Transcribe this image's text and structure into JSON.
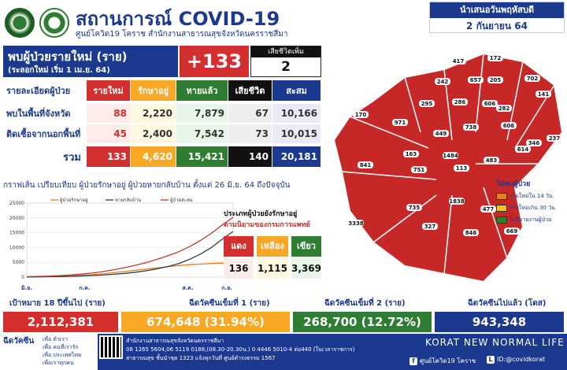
{
  "header": {
    "title": "สถานการณ์ COVID-19",
    "subtitle": "ศูนย์โควิด19 โคราช สำนักงานสาธารณสุขจังหวัดนครราชสีมา",
    "date_label": "นำเสนอวันพฤหัสบดี",
    "date_value": "2 กันยายน 64"
  },
  "summary": {
    "new_title": "พบผู้ป่วยรายใหม่ (ราย)",
    "new_subtitle": "(ระลอกใหม่ เริ่ม 1 เม.ย. 64)",
    "new_count": "+133",
    "death_label": "เสียชีวิตเพิ่ม",
    "death_count": "2"
  },
  "table": {
    "headers": [
      "รายละเอียดผู้ป่วย",
      "รายใหม่",
      "รักษาอยู่",
      "หายแล้ว",
      "เสียชีวิต",
      "สะสม"
    ],
    "rows": [
      {
        "label": "พบในพื้นที่จังหวัด",
        "cells": [
          "88",
          "2,220",
          "7,879",
          "67",
          "10,166"
        ]
      },
      {
        "label": "ติดเชื้อจากนอกพื้นที่",
        "cells": [
          "45",
          "2,400",
          "7,542",
          "73",
          "10,015"
        ]
      }
    ],
    "total": {
      "label": "รวม",
      "cells": [
        "133",
        "4,620",
        "15,421",
        "140",
        "20,181"
      ]
    }
  },
  "chart_title": "กราฟเส้น เปรียบเทียบ ผู้ป่วยรักษาอยู่ ผู้ป่วยหายกลับบ้าน ตั้งแต่ 26 มิ.ย. 64 ถึงปัจจุบัน",
  "chart_data": {
    "type": "line",
    "series": [
      {
        "name": "ผู้ป่วยรักษาอยู่",
        "color": "#e67e22",
        "values": [
          100,
          150,
          200,
          300,
          450,
          600,
          800,
          1100,
          1500,
          1900,
          2300,
          2700,
          3100,
          3500,
          3900,
          4200,
          4400,
          4600,
          4700,
          4620
        ]
      },
      {
        "name": "หายกลับบ้าน",
        "color": "#2c3e50",
        "values": [
          50,
          80,
          120,
          180,
          260,
          380,
          520,
          700,
          950,
          1250,
          1650,
          2150,
          2800,
          3600,
          4600,
          6000,
          7800,
          10000,
          12800,
          15421
        ]
      },
      {
        "name": "ผู้ป่วยสะสม",
        "color": "#c0392b",
        "values": [
          150,
          230,
          330,
          500,
          730,
          1000,
          1350,
          1850,
          2500,
          3200,
          4000,
          4900,
          6000,
          7200,
          8600,
          10300,
          12400,
          14800,
          17600,
          20181
        ]
      }
    ],
    "yticks": [
      "25000",
      "20000",
      "15000",
      "10000",
      "5000",
      "0"
    ],
    "ylim": [
      0,
      25000
    ],
    "month_labels": [
      "มิ.ย.",
      "ก.ค.",
      "ส.ค.",
      "ก.ย."
    ]
  },
  "hospital": {
    "title": "ประเภทผู้ป่วยยังรักษาอยู่",
    "subtitle": "ตามนิยามของกรมการแพทย์",
    "labels": [
      "แดง",
      "เหลือง",
      "เขียว"
    ],
    "values": [
      "136",
      "1,115",
      "3,369"
    ],
    "colors": [
      "#d32f2f",
      "#f9a825",
      "#2e7d32"
    ]
  },
  "map": {
    "districts": [
      "417",
      "172",
      "242",
      "657",
      "205",
      "702",
      "141",
      "295",
      "286",
      "606",
      "282",
      "170",
      "971",
      "449",
      "738",
      "606",
      "614",
      "346",
      "237",
      "163",
      "1484",
      "483",
      "841",
      "751",
      "113",
      "735",
      "1838",
      "477",
      "3338",
      "327",
      "846",
      "669"
    ],
    "legend_title": "ไม่พบผู้ป่วย",
    "legend_items": [
      {
        "label": "รายใหม่ใน 14 วัน",
        "color": "#e67e22"
      },
      {
        "label": "รายใหม่เกิน 30 วัน",
        "color": "#f1c40f"
      },
      {
        "label": "ไม่มีรายงานผู้ป่วย",
        "color": "#2e7d32"
      }
    ]
  },
  "vaccine": {
    "target_label": "เป้าหมาย 18 ปีขึ้นไป (ราย)",
    "target_value": "2,112,381",
    "dose1_label": "ฉีดวัคซีนเข็มที่ 1 (ราย)",
    "dose1_value": "674,648 (31.94%)",
    "dose2_label": "ฉีดวัคซีนเข็มที่ 2 (ราย)",
    "dose2_value": "268,700 (12.72%)",
    "total_label": "ฉีดวัคซีนไปแล้ว (โดส)",
    "total_value": "943,348"
  },
  "footer": {
    "left_title": "ฉีดวัคซีน",
    "left_lines": [
      "เพื่อ ตัวเรา",
      "เพื่อ คนที่เรารัก",
      "เพื่อ ประเทศไทย",
      "เพื่อเราทุกคน"
    ],
    "address": [
      "สำนักงานสาธารณสุขจังหวัดนครราชสีมา",
      "08 1265 5604,06 5119 0188,(08.30-20.30น.) 0 4446 5010-4 ต่อ440 (ในเวลาราชการ)",
      "สาธารณสุข ชั้นนำชุด 1323 แจ้งทุกวันที่ ศูนย์ดำรงธรรม 1567"
    ],
    "brand": "KORAT NEW NORMAL LIFE",
    "facebook": "ศูนย์โควิด19 โคราช",
    "line": "ID:@covidkorat"
  }
}
